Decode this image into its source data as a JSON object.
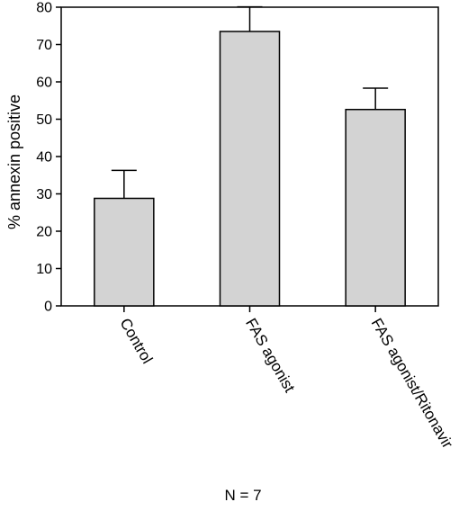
{
  "chart_data": {
    "type": "bar",
    "categories": [
      "Control",
      "FAS agonist",
      "FAS agonist/Ritonavir"
    ],
    "values": [
      28.8,
      73.5,
      52.6
    ],
    "errors": [
      7.5,
      6.6,
      5.7
    ],
    "ylabel": "% annexin positive",
    "xlabel": "",
    "ylim": [
      0,
      80
    ],
    "yticks": [
      0,
      10,
      20,
      30,
      40,
      50,
      60,
      70,
      80
    ],
    "grid": false,
    "bar_color": "#d3d3d3",
    "footnote": "N = 7"
  }
}
